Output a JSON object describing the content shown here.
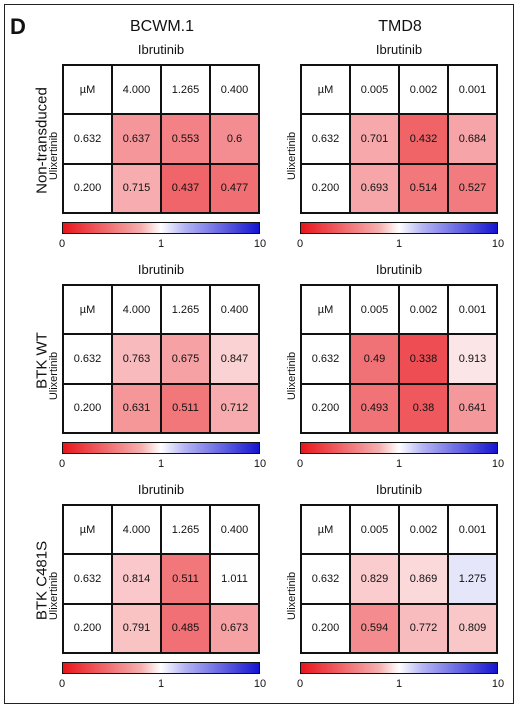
{
  "panel_letter": "D",
  "columns": [
    "BCWM.1",
    "TMD8"
  ],
  "rows": [
    "Non-transduced",
    "BTK WT",
    "BTK C481S"
  ],
  "drug_top": "Ibrutinib",
  "drug_side": "Ulixertinib",
  "unit": "µM",
  "colorbar": {
    "ticks": [
      "0",
      "1",
      "10"
    ],
    "low_color": "#e8151c",
    "mid_color": "#ffffff",
    "high_color": "#1515d0"
  },
  "chart_data": {
    "type": "heatmap",
    "panels": [
      {
        "row": "Non-transduced",
        "col": "BCWM.1",
        "x": [
          "4.000",
          "1.265",
          "0.400"
        ],
        "y": [
          "0.632",
          "0.200"
        ],
        "values": [
          [
            "0.637",
            "0.553",
            "0.6"
          ],
          [
            "0.715",
            "0.437",
            "0.477"
          ]
        ]
      },
      {
        "row": "Non-transduced",
        "col": "TMD8",
        "x": [
          "0.005",
          "0.002",
          "0.001"
        ],
        "y": [
          "0.632",
          "0.200"
        ],
        "values": [
          [
            "0.701",
            "0.432",
            "0.684"
          ],
          [
            "0.693",
            "0.514",
            "0.527"
          ]
        ]
      },
      {
        "row": "BTK WT",
        "col": "BCWM.1",
        "x": [
          "4.000",
          "1.265",
          "0.400"
        ],
        "y": [
          "0.632",
          "0.200"
        ],
        "values": [
          [
            "0.763",
            "0.675",
            "0.847"
          ],
          [
            "0.631",
            "0.511",
            "0.712"
          ]
        ]
      },
      {
        "row": "BTK WT",
        "col": "TMD8",
        "x": [
          "0.005",
          "0.002",
          "0.001"
        ],
        "y": [
          "0.632",
          "0.200"
        ],
        "values": [
          [
            "0.49",
            "0.338",
            "0.913"
          ],
          [
            "0.493",
            "0.38",
            "0.641"
          ]
        ]
      },
      {
        "row": "BTK C481S",
        "col": "BCWM.1",
        "x": [
          "4.000",
          "1.265",
          "0.400"
        ],
        "y": [
          "0.632",
          "0.200"
        ],
        "values": [
          [
            "0.814",
            "0.511",
            "1.011"
          ],
          [
            "0.791",
            "0.485",
            "0.673"
          ]
        ]
      },
      {
        "row": "BTK C481S",
        "col": "TMD8",
        "x": [
          "0.005",
          "0.002",
          "0.001"
        ],
        "y": [
          "0.632",
          "0.200"
        ],
        "values": [
          [
            "0.829",
            "0.869",
            "1.275"
          ],
          [
            "0.594",
            "0.772",
            "0.809"
          ]
        ]
      }
    ]
  }
}
